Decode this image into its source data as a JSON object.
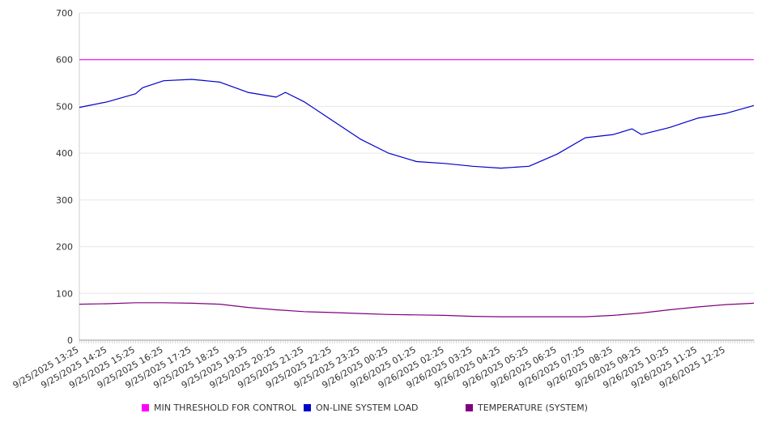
{
  "chart_data": {
    "type": "line",
    "y_ticks": [
      0,
      100,
      200,
      300,
      400,
      500,
      600,
      700
    ],
    "ylim": [
      0,
      700
    ],
    "grid": true,
    "legend_position": "bottom",
    "x_tick_labels": [
      "9/25/2025 13:25",
      "9/25/2025 14:25",
      "9/25/2025 15:25",
      "9/25/2025 16:25",
      "9/25/2025 17:25",
      "9/25/2025 18:25",
      "9/25/2025 19:25",
      "9/25/2025 20:25",
      "9/25/2025 21:25",
      "9/25/2025 22:25",
      "9/25/2025 23:25",
      "9/26/2025 00:25",
      "9/26/2025 01:25",
      "9/26/2025 02:25",
      "9/26/2025 03:25",
      "9/26/2025 04:25",
      "9/26/2025 05:25",
      "9/26/2025 06:25",
      "9/26/2025 07:25",
      "9/26/2025 08:25",
      "9/26/2025 09:25",
      "9/26/2025 10:25",
      "9/26/2025 11:25",
      "9/26/2025 12:25"
    ],
    "x_start": "9/25/2025 13:25",
    "x_end": "9/26/2025 13:25",
    "series": [
      {
        "name": "MIN THRESHOLD FOR CONTROL",
        "color": "#ff00ff",
        "points": [
          [
            "9/25/2025 13:25",
            600
          ],
          [
            "9/26/2025 13:25",
            600
          ]
        ]
      },
      {
        "name": "ON-LINE SYSTEM LOAD",
        "color": "#0000cc",
        "points": [
          [
            "9/25/2025 13:25",
            498
          ],
          [
            "9/25/2025 14:25",
            510
          ],
          [
            "9/25/2025 15:25",
            527
          ],
          [
            "9/25/2025 15:40",
            540
          ],
          [
            "9/25/2025 16:25",
            555
          ],
          [
            "9/25/2025 17:25",
            558
          ],
          [
            "9/25/2025 18:25",
            552
          ],
          [
            "9/25/2025 19:25",
            530
          ],
          [
            "9/25/2025 20:25",
            520
          ],
          [
            "9/25/2025 20:45",
            530
          ],
          [
            "9/25/2025 21:25",
            510
          ],
          [
            "9/25/2025 22:25",
            470
          ],
          [
            "9/25/2025 23:25",
            430
          ],
          [
            "9/26/2025 00:25",
            400
          ],
          [
            "9/26/2025 01:25",
            382
          ],
          [
            "9/26/2025 02:25",
            378
          ],
          [
            "9/26/2025 03:25",
            372
          ],
          [
            "9/26/2025 04:25",
            368
          ],
          [
            "9/26/2025 05:25",
            372
          ],
          [
            "9/26/2025 06:25",
            398
          ],
          [
            "9/26/2025 07:25",
            433
          ],
          [
            "9/26/2025 08:25",
            440
          ],
          [
            "9/26/2025 09:05",
            452
          ],
          [
            "9/26/2025 09:25",
            440
          ],
          [
            "9/26/2025 10:25",
            455
          ],
          [
            "9/26/2025 11:25",
            475
          ],
          [
            "9/26/2025 12:25",
            485
          ],
          [
            "9/26/2025 13:25",
            502
          ]
        ]
      },
      {
        "name": "TEMPERATURE (SYSTEM)",
        "color": "#800080",
        "points": [
          [
            "9/25/2025 13:25",
            77
          ],
          [
            "9/25/2025 14:25",
            78
          ],
          [
            "9/25/2025 15:25",
            80
          ],
          [
            "9/25/2025 16:25",
            80
          ],
          [
            "9/25/2025 17:25",
            79
          ],
          [
            "9/25/2025 18:25",
            77
          ],
          [
            "9/25/2025 19:25",
            70
          ],
          [
            "9/25/2025 20:25",
            65
          ],
          [
            "9/25/2025 21:25",
            61
          ],
          [
            "9/25/2025 22:25",
            59
          ],
          [
            "9/25/2025 23:25",
            57
          ],
          [
            "9/26/2025 00:25",
            55
          ],
          [
            "9/26/2025 01:25",
            54
          ],
          [
            "9/26/2025 02:25",
            53
          ],
          [
            "9/26/2025 03:25",
            51
          ],
          [
            "9/26/2025 04:25",
            50
          ],
          [
            "9/26/2025 05:25",
            50
          ],
          [
            "9/26/2025 06:25",
            50
          ],
          [
            "9/26/2025 07:25",
            50
          ],
          [
            "9/26/2025 08:25",
            53
          ],
          [
            "9/26/2025 09:25",
            58
          ],
          [
            "9/26/2025 10:25",
            65
          ],
          [
            "9/26/2025 11:25",
            71
          ],
          [
            "9/26/2025 12:25",
            76
          ],
          [
            "9/26/2025 13:25",
            79
          ]
        ]
      }
    ]
  }
}
